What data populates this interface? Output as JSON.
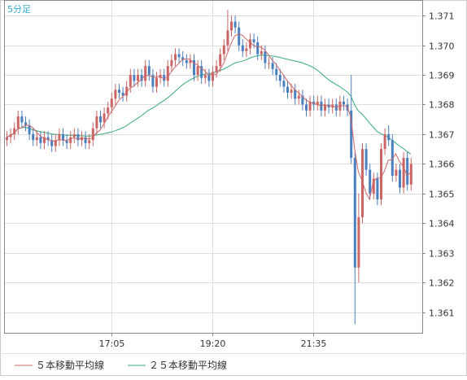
{
  "chart_data": {
    "type": "candlestick",
    "timeframe_label": "5分足",
    "x_tick_labels": [
      "17:05",
      "19:20",
      "21:35"
    ],
    "y_ticks": [
      1.361,
      1.362,
      1.363,
      1.364,
      1.365,
      1.366,
      1.367,
      1.368,
      1.369,
      1.37,
      1.371
    ],
    "y_tick_labels": [
      "1.361",
      "1.362",
      "1.363",
      "1.364",
      "1.365",
      "1.366",
      "1.367",
      "1.368",
      "1.369",
      "1.370",
      "1.371"
    ],
    "ylim": [
      1.3603,
      1.3715
    ],
    "x_tick_bar_index": [
      28,
      55,
      82
    ],
    "grid": true,
    "legend": [
      {
        "label": "５本移動平均線",
        "color": "#cc6666"
      },
      {
        "label": "２５本移動平均線",
        "color": "#33aa77"
      }
    ],
    "colors": {
      "up": "#cc6666",
      "down": "#4a7fc0",
      "ma5": "#cc6666",
      "ma25": "#33aa77",
      "grid": "#dddddd",
      "axis": "#888888",
      "label": "#33aacc",
      "tick_text": "#333333"
    },
    "closes": [
      1.3669,
      1.367,
      1.3672,
      1.3676,
      1.3674,
      1.3673,
      1.367,
      1.3668,
      1.3669,
      1.3667,
      1.3669,
      1.3668,
      1.3666,
      1.3668,
      1.367,
      1.3668,
      1.3667,
      1.3669,
      1.367,
      1.3668,
      1.3669,
      1.3667,
      1.3668,
      1.3672,
      1.3676,
      1.3674,
      1.3677,
      1.3679,
      1.3682,
      1.3685,
      1.3684,
      1.3683,
      1.3686,
      1.369,
      1.3688,
      1.369,
      1.3688,
      1.3693,
      1.369,
      1.3686,
      1.3689,
      1.369,
      1.3688,
      1.3693,
      1.3695,
      1.3697,
      1.3696,
      1.3695,
      1.3694,
      1.3695,
      1.369,
      1.3693,
      1.3689,
      1.369,
      1.3688,
      1.3691,
      1.3693,
      1.3697,
      1.37,
      1.3705,
      1.3708,
      1.3706,
      1.37,
      1.3698,
      1.3699,
      1.3702,
      1.3701,
      1.3697,
      1.3698,
      1.3694,
      1.3694,
      1.3692,
      1.369,
      1.3688,
      1.3686,
      1.3684,
      1.3685,
      1.3682,
      1.3683,
      1.368,
      1.3678,
      1.3681,
      1.368,
      1.3681,
      1.3678,
      1.368,
      1.3679,
      1.368,
      1.3678,
      1.3681,
      1.368,
      1.3678,
      1.3662,
      1.3625,
      1.3642,
      1.3665,
      1.3658,
      1.365,
      1.3655,
      1.3648,
      1.3665,
      1.367,
      1.3668,
      1.3656,
      1.3658,
      1.3652,
      1.3662,
      1.3653,
      1.366
    ]
  }
}
